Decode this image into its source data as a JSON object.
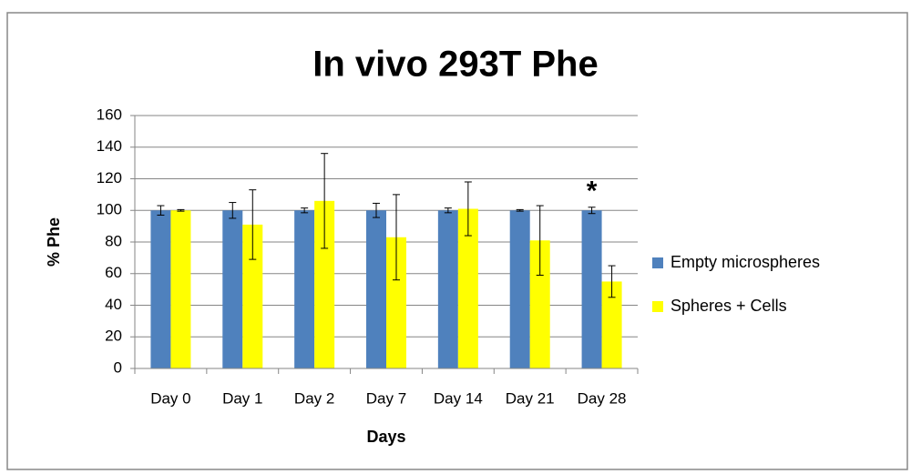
{
  "chart_data": {
    "type": "bar",
    "title": "In vivo 293T Phe",
    "x_label": "Days",
    "y_label": "% Phe",
    "categories": [
      "Day 0",
      "Day 1",
      "Day 2",
      "Day 7",
      "Day 14",
      "Day 21",
      "Day 28"
    ],
    "series": [
      {
        "name": "Empty microspheres",
        "color": "#4f81bd",
        "values": [
          100,
          100,
          100,
          100,
          100,
          100,
          100
        ],
        "errors": [
          3,
          5,
          1.5,
          4.5,
          1.5,
          0.5,
          2
        ]
      },
      {
        "name": "Spheres + Cells",
        "color": "#ffff00",
        "values": [
          100,
          91,
          106,
          83,
          101,
          81,
          55
        ],
        "errors": [
          0.5,
          22,
          30,
          27,
          17,
          22,
          10
        ]
      }
    ],
    "annotations": [
      {
        "text": "*",
        "category": 6,
        "series": 0
      }
    ],
    "ylim": [
      0,
      160
    ],
    "yticks": [
      0,
      20,
      40,
      60,
      80,
      100,
      120,
      140,
      160
    ],
    "grid": true,
    "legend": "right"
  }
}
